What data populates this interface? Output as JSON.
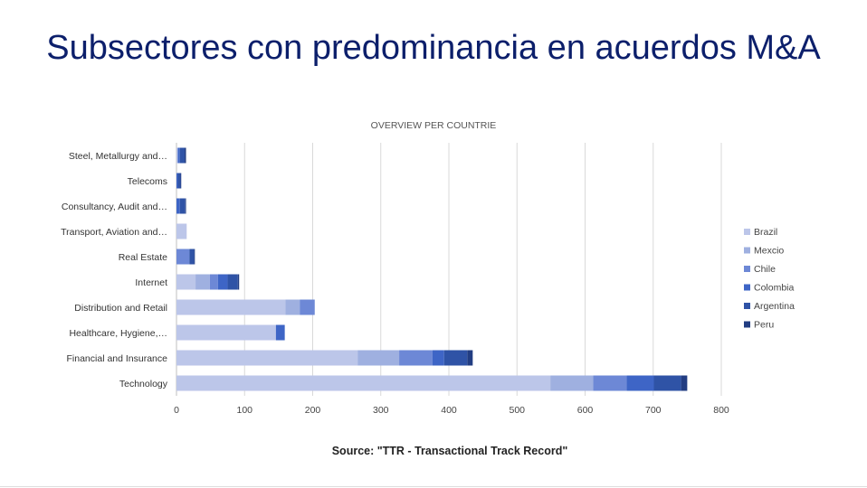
{
  "slide": {
    "title": "Subsectores con predominancia en acuerdos M&A",
    "source": "Source: \"TTR - Transactional Track Record\""
  },
  "chart_data": {
    "type": "bar",
    "orientation": "horizontal",
    "stacked": true,
    "title": "OVERVIEW PER COUNTRIE",
    "categories": [
      "Steel, Metallurgy and…",
      "Telecoms",
      "Consultancy, Audit and…",
      "Transport, Aviation and…",
      "Real Estate",
      "Internet",
      "Distribution and Retail",
      "Healthcare, Hygiene,…",
      "Financial and Insurance",
      "Technology"
    ],
    "series": [
      {
        "name": "Brazil",
        "color": "#bcc6e9",
        "values": [
          2,
          0,
          0,
          15,
          0,
          28,
          160,
          146,
          266,
          549
        ]
      },
      {
        "name": "Mexcio",
        "color": "#9fb0e0",
        "values": [
          0,
          0,
          0,
          0,
          0,
          21,
          21,
          0,
          61,
          63
        ]
      },
      {
        "name": "Chile",
        "color": "#6d88d6",
        "values": [
          0,
          0,
          0,
          0,
          19,
          12,
          22,
          0,
          49,
          49
        ]
      },
      {
        "name": "Colombia",
        "color": "#3e65c6",
        "values": [
          3,
          2,
          5,
          0,
          0,
          14,
          0,
          13,
          17,
          40
        ]
      },
      {
        "name": "Argentina",
        "color": "#2f53a6",
        "values": [
          7,
          4,
          8,
          0,
          7,
          15,
          0,
          0,
          34,
          40
        ]
      },
      {
        "name": "Peru",
        "color": "#223d82",
        "values": [
          2,
          1,
          1,
          0,
          1,
          2,
          0,
          0,
          8,
          9
        ]
      }
    ],
    "xlim": [
      0,
      800
    ],
    "xticks": [
      0,
      100,
      200,
      300,
      400,
      500,
      600,
      700,
      800
    ],
    "grid": "vertical",
    "legend": "right"
  }
}
